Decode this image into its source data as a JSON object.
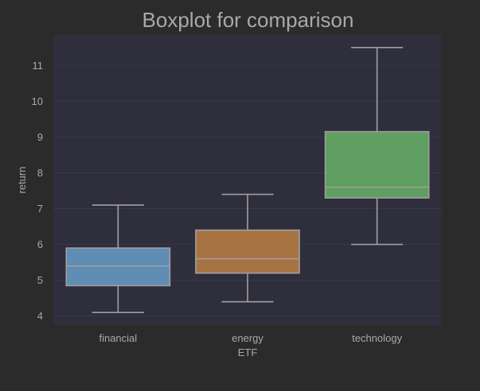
{
  "chart_data": {
    "type": "box",
    "title": "Boxplot for comparison",
    "xlabel": "ETF",
    "ylabel": "return",
    "categories": [
      "financial",
      "energy",
      "technology"
    ],
    "boxes": [
      {
        "category": "financial",
        "whisker_low": 4.1,
        "q1": 4.85,
        "median": 5.4,
        "q3": 5.9,
        "whisker_high": 7.1
      },
      {
        "category": "energy",
        "whisker_low": 4.4,
        "q1": 5.2,
        "median": 5.6,
        "q3": 6.4,
        "whisker_high": 7.4
      },
      {
        "category": "technology",
        "whisker_low": 6.0,
        "q1": 7.3,
        "median": 7.6,
        "q3": 9.15,
        "whisker_high": 11.5
      }
    ],
    "y_ticks": [
      4,
      5,
      6,
      7,
      8,
      9,
      10,
      11
    ],
    "ylim": [
      3.75,
      11.85
    ],
    "grid": true,
    "colors": {
      "background": "#2b2b2b",
      "plot_area": "#2e2e3c",
      "grid": "#393948",
      "text": "#a9a9a9",
      "line": "#a0a0a0",
      "boxes": [
        "#5f8db4",
        "#a87343",
        "#5f9f61"
      ]
    }
  }
}
